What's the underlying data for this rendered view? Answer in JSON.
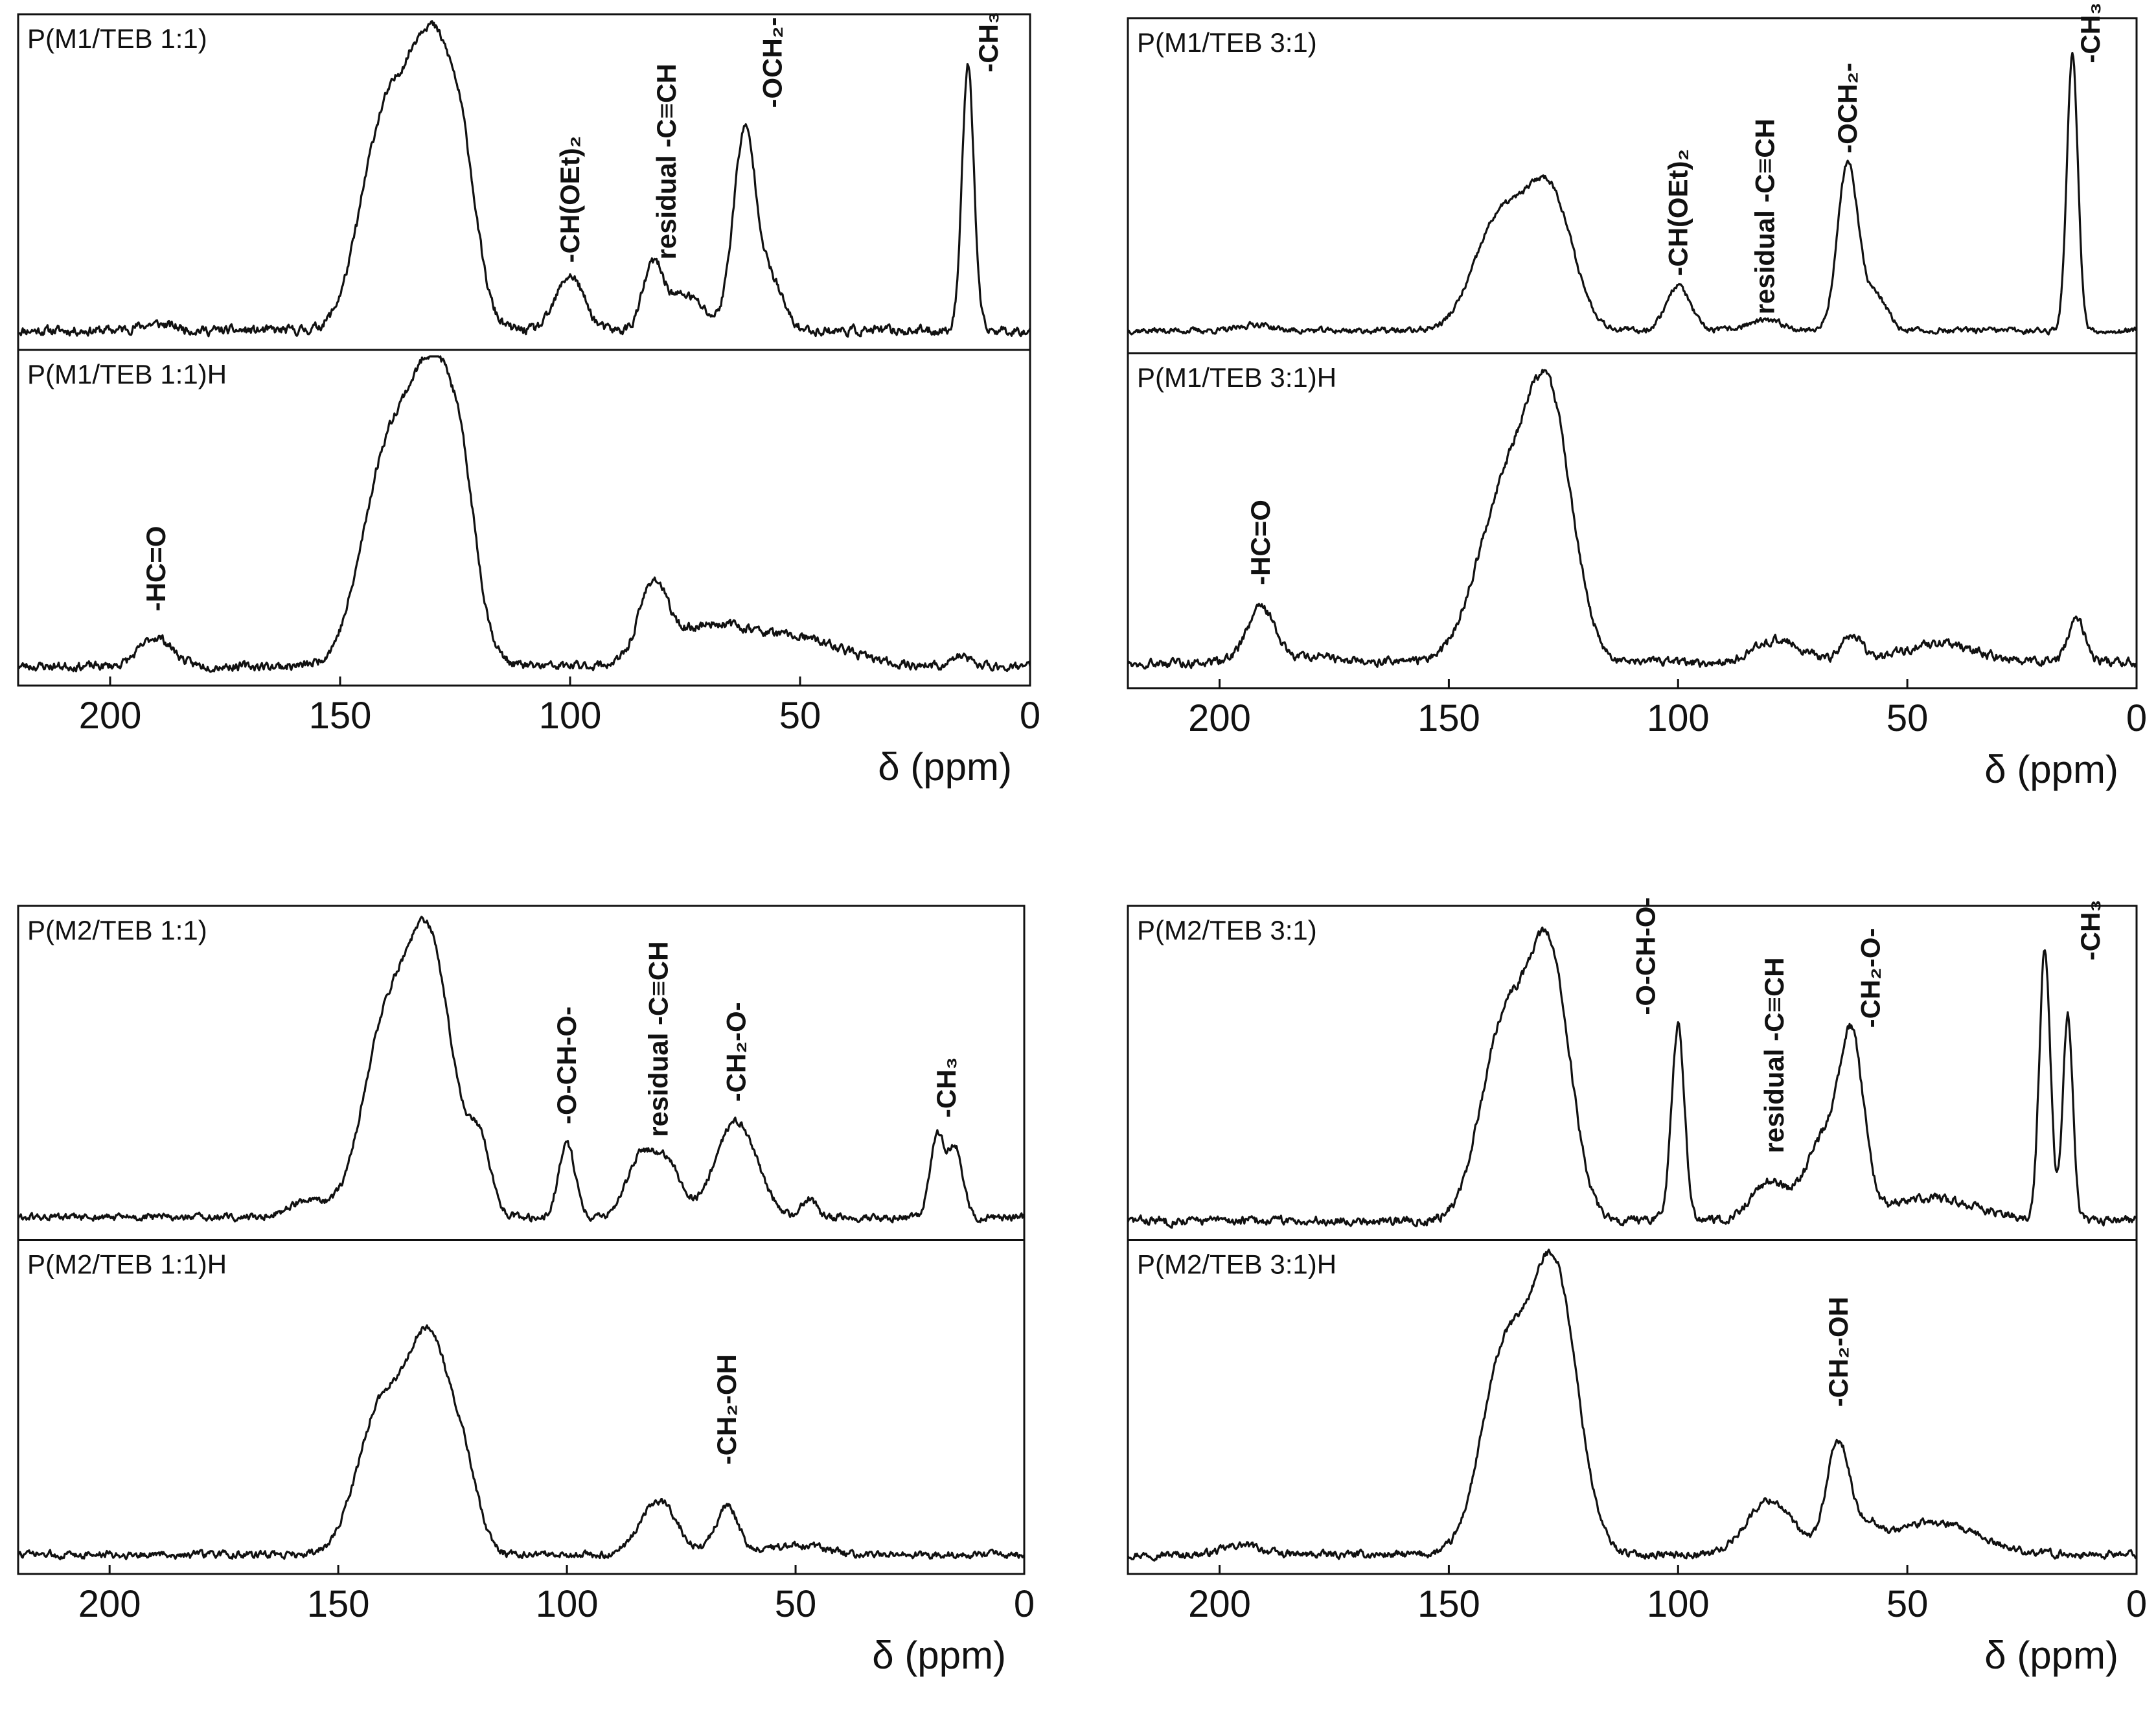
{
  "chart_data": [
    {
      "type": "line",
      "id": "M1-1-1",
      "xlabel": "δ (ppm)",
      "xlim": [
        220,
        0
      ],
      "xticks": [
        200,
        150,
        100,
        50,
        0
      ],
      "subplots": [
        {
          "label": "P(M1/TEB 1:1)",
          "peaks": [
            {
              "center": 141,
              "height": 0.57,
              "width": 5
            },
            {
              "center": 130,
              "height": 0.88,
              "width": 5.5
            },
            {
              "center": 123,
              "height": 0.25,
              "width": 3
            },
            {
              "center": 100,
              "height": 0.17,
              "width": 3
            },
            {
              "center": 82,
              "height": 0.19,
              "width": 2.2
            },
            {
              "center": 75,
              "height": 0.11,
              "width": 4
            },
            {
              "center": 62,
              "height": 0.62,
              "width": 2.5
            },
            {
              "center": 56,
              "height": 0.14,
              "width": 2.5
            },
            {
              "center": 13.5,
              "height": 0.82,
              "width": 1.3
            },
            {
              "center": 190,
              "height": 0.02,
              "width": 4
            }
          ],
          "baseline": 0.04,
          "noise": 0.013,
          "seed": 11,
          "annotations": [
            {
              "text": "-CH(OEt)₂",
              "x": 100,
              "y": 0.25
            },
            {
              "text": "residual -C≡CH",
              "x": 79,
              "y": 0.26
            },
            {
              "text": "-OCH₂-",
              "x": 56,
              "y": 0.73
            },
            {
              "text": "-CH₃",
              "x": 9,
              "y": 0.84
            }
          ]
        },
        {
          "label": "P(M1/TEB 1:1)H",
          "peaks": [
            {
              "center": 140,
              "height": 0.6,
              "width": 5.5
            },
            {
              "center": 129,
              "height": 0.86,
              "width": 5.5
            },
            {
              "center": 123,
              "height": 0.2,
              "width": 3
            },
            {
              "center": 190,
              "height": 0.09,
              "width": 3.5
            },
            {
              "center": 82,
              "height": 0.22,
              "width": 3
            },
            {
              "center": 70,
              "height": 0.12,
              "width": 9
            },
            {
              "center": 50,
              "height": 0.08,
              "width": 10
            },
            {
              "center": 15,
              "height": 0.03,
              "width": 2
            }
          ],
          "baseline": 0.04,
          "noise": 0.012,
          "seed": 23,
          "annotations": [
            {
              "text": "-HC=O",
              "x": 190,
              "y": 0.21
            }
          ]
        }
      ]
    },
    {
      "type": "line",
      "id": "M1-3-1",
      "xlabel": "δ (ppm)",
      "xlim": [
        220,
        0
      ],
      "xticks": [
        200,
        150,
        100,
        50,
        0
      ],
      "subplots": [
        {
          "label": "P(M1/TEB 3:1)",
          "peaks": [
            {
              "center": 139,
              "height": 0.34,
              "width": 5.5
            },
            {
              "center": 128,
              "height": 0.42,
              "width": 5
            },
            {
              "center": 100,
              "height": 0.14,
              "width": 2.6
            },
            {
              "center": 81,
              "height": 0.03,
              "width": 4
            },
            {
              "center": 63,
              "height": 0.52,
              "width": 2.2
            },
            {
              "center": 57,
              "height": 0.11,
              "width": 2.5
            },
            {
              "center": 14,
              "height": 0.86,
              "width": 1.2
            },
            {
              "center": 192,
              "height": 0.02,
              "width": 3
            }
          ],
          "baseline": 0.05,
          "noise": 0.008,
          "seed": 37,
          "annotations": [
            {
              "text": "-CH(OEt)₂",
              "x": 100,
              "y": 0.22
            },
            {
              "text": "residual -C≡CH",
              "x": 81,
              "y": 0.1
            },
            {
              "text": "-OCH₂-",
              "x": 63,
              "y": 0.6
            },
            {
              "text": "-CH₃",
              "x": 10,
              "y": 0.88
            }
          ]
        },
        {
          "label": "P(M1/TEB 3:1)H",
          "peaks": [
            {
              "center": 138,
              "height": 0.5,
              "width": 6
            },
            {
              "center": 128,
              "height": 0.75,
              "width": 5
            },
            {
              "center": 191,
              "height": 0.17,
              "width": 3
            },
            {
              "center": 180,
              "height": 0.02,
              "width": 5
            },
            {
              "center": 78,
              "height": 0.07,
              "width": 5
            },
            {
              "center": 62,
              "height": 0.08,
              "width": 2.2
            },
            {
              "center": 43,
              "height": 0.06,
              "width": 8
            },
            {
              "center": 13,
              "height": 0.13,
              "width": 1.8
            }
          ],
          "baseline": 0.06,
          "noise": 0.012,
          "seed": 49,
          "annotations": [
            {
              "text": "-HC=O",
              "x": 191,
              "y": 0.3
            }
          ]
        }
      ]
    },
    {
      "type": "line",
      "id": "M2-1-1",
      "xlabel": "δ (ppm)",
      "xlim": [
        220,
        0
      ],
      "xticks": [
        200,
        150,
        100,
        50,
        0
      ],
      "subplots": [
        {
          "label": "P(M2/TEB 1:1)",
          "peaks": [
            {
              "center": 140,
              "height": 0.55,
              "width": 5
            },
            {
              "center": 130,
              "height": 0.83,
              "width": 5
            },
            {
              "center": 119,
              "height": 0.2,
              "width": 2.5
            },
            {
              "center": 157,
              "height": 0.05,
              "width": 4
            },
            {
              "center": 100,
              "height": 0.23,
              "width": 1.8
            },
            {
              "center": 84,
              "height": 0.18,
              "width": 3
            },
            {
              "center": 78,
              "height": 0.16,
              "width": 3
            },
            {
              "center": 63,
              "height": 0.3,
              "width": 4.5
            },
            {
              "center": 47,
              "height": 0.06,
              "width": 1.5
            },
            {
              "center": 19,
              "height": 0.25,
              "width": 1.6
            },
            {
              "center": 15,
              "height": 0.21,
              "width": 1.6
            }
          ],
          "baseline": 0.05,
          "noise": 0.01,
          "seed": 61,
          "annotations": [
            {
              "text": "-O-CH-O-",
              "x": 100,
              "y": 0.34
            },
            {
              "text": "residual -C≡CH",
              "x": 80,
              "y": 0.3
            },
            {
              "text": "-CH₂-O-",
              "x": 63,
              "y": 0.41
            },
            {
              "text": "-CH₃",
              "x": 17,
              "y": 0.36
            }
          ]
        },
        {
          "label": "P(M2/TEB 1:1)H",
          "peaks": [
            {
              "center": 141,
              "height": 0.43,
              "width": 5
            },
            {
              "center": 130,
              "height": 0.66,
              "width": 5
            },
            {
              "center": 122,
              "height": 0.16,
              "width": 3
            },
            {
              "center": 80,
              "height": 0.17,
              "width": 4
            },
            {
              "center": 65,
              "height": 0.15,
              "width": 2.5
            },
            {
              "center": 50,
              "height": 0.03,
              "width": 6
            }
          ],
          "baseline": 0.04,
          "noise": 0.01,
          "seed": 73,
          "annotations": [
            {
              "text": "-CH₂-OH",
              "x": 65,
              "y": 0.32
            }
          ]
        }
      ]
    },
    {
      "type": "line",
      "id": "M2-3-1",
      "xlabel": "δ (ppm)",
      "xlim": [
        220,
        0
      ],
      "xticks": [
        200,
        150,
        100,
        50,
        0
      ],
      "subplots": [
        {
          "label": "P(M2/TEB 3:1)",
          "peaks": [
            {
              "center": 138,
              "height": 0.6,
              "width": 5
            },
            {
              "center": 128,
              "height": 0.8,
              "width": 4.5
            },
            {
              "center": 100,
              "height": 0.61,
              "width": 1.4
            },
            {
              "center": 80,
              "height": 0.12,
              "width": 4
            },
            {
              "center": 68,
              "height": 0.25,
              "width": 4
            },
            {
              "center": 62,
              "height": 0.5,
              "width": 2.6
            },
            {
              "center": 45,
              "height": 0.07,
              "width": 10
            },
            {
              "center": 20,
              "height": 0.84,
              "width": 1.2
            },
            {
              "center": 15,
              "height": 0.64,
              "width": 1.1
            }
          ],
          "baseline": 0.04,
          "noise": 0.012,
          "seed": 83,
          "annotations": [
            {
              "text": "-O-CH-O-",
              "x": 107,
              "y": 0.68
            },
            {
              "text": "residual -C≡CH",
              "x": 79,
              "y": 0.25
            },
            {
              "text": "-CH₂-O-",
              "x": 58,
              "y": 0.64
            },
            {
              "text": "-CH₃",
              "x": 10,
              "y": 0.85
            }
          ]
        },
        {
          "label": "P(M2/TEB 3:1)H",
          "peaks": [
            {
              "center": 138,
              "height": 0.6,
              "width": 5
            },
            {
              "center": 127,
              "height": 0.88,
              "width": 5
            },
            {
              "center": 80,
              "height": 0.17,
              "width": 5
            },
            {
              "center": 65,
              "height": 0.34,
              "width": 2.6
            },
            {
              "center": 58,
              "height": 0.06,
              "width": 2
            },
            {
              "center": 45,
              "height": 0.1,
              "width": 10
            },
            {
              "center": 195,
              "height": 0.03,
              "width": 4
            }
          ],
          "baseline": 0.04,
          "noise": 0.01,
          "seed": 97,
          "annotations": [
            {
              "text": "-CH₂-OH",
              "x": 65,
              "y": 0.5
            }
          ]
        }
      ]
    }
  ]
}
